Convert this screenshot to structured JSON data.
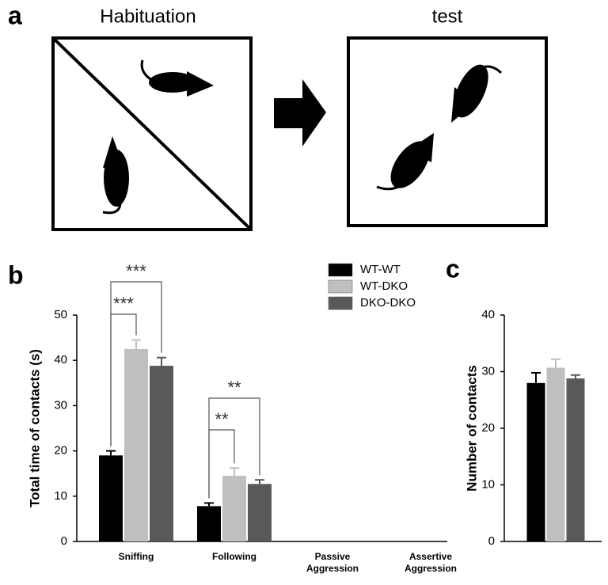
{
  "panel_labels": [
    "a",
    "b",
    "c"
  ],
  "panel_a": {
    "left_title": "Habituation",
    "right_title": "test"
  },
  "chart_data": [
    {
      "type": "bar",
      "ylabel": "Total time of contacts (s)",
      "categories": [
        "Sniffing",
        "Following",
        "Passive Aggression",
        "Assertive Aggression"
      ],
      "series": [
        {
          "name": "WT-WT",
          "color": "#000000",
          "values": [
            19,
            7.8,
            0,
            0
          ],
          "errors": [
            1,
            0.7,
            0,
            0
          ]
        },
        {
          "name": "WT-DKO",
          "color": "#bfbfbf",
          "values": [
            42.5,
            14.5,
            0,
            0
          ],
          "errors": [
            2,
            1.7,
            0,
            0
          ]
        },
        {
          "name": "DKO-DKO",
          "color": "#595959",
          "values": [
            38.8,
            12.7,
            0,
            0
          ],
          "errors": [
            1.8,
            0.9,
            0,
            0
          ]
        }
      ],
      "annotations": [
        "***",
        "***",
        "**",
        "**"
      ],
      "ylim": [
        0,
        50
      ],
      "yticks": [
        0,
        10,
        20,
        30,
        40,
        50
      ],
      "legend": "top-right"
    },
    {
      "type": "bar",
      "ylabel": "Number of contacts",
      "categories": [
        null
      ],
      "series": [
        {
          "color": "#000000",
          "values": [
            28
          ],
          "errors": [
            1.8
          ]
        },
        {
          "color": "#bfbfbf",
          "values": [
            30.7
          ],
          "errors": [
            1.5
          ]
        },
        {
          "color": "#595959",
          "values": [
            28.8
          ],
          "errors": [
            0.6
          ]
        }
      ],
      "ylim": [
        0,
        40
      ],
      "yticks": [
        0,
        10,
        20,
        30,
        40
      ]
    }
  ]
}
